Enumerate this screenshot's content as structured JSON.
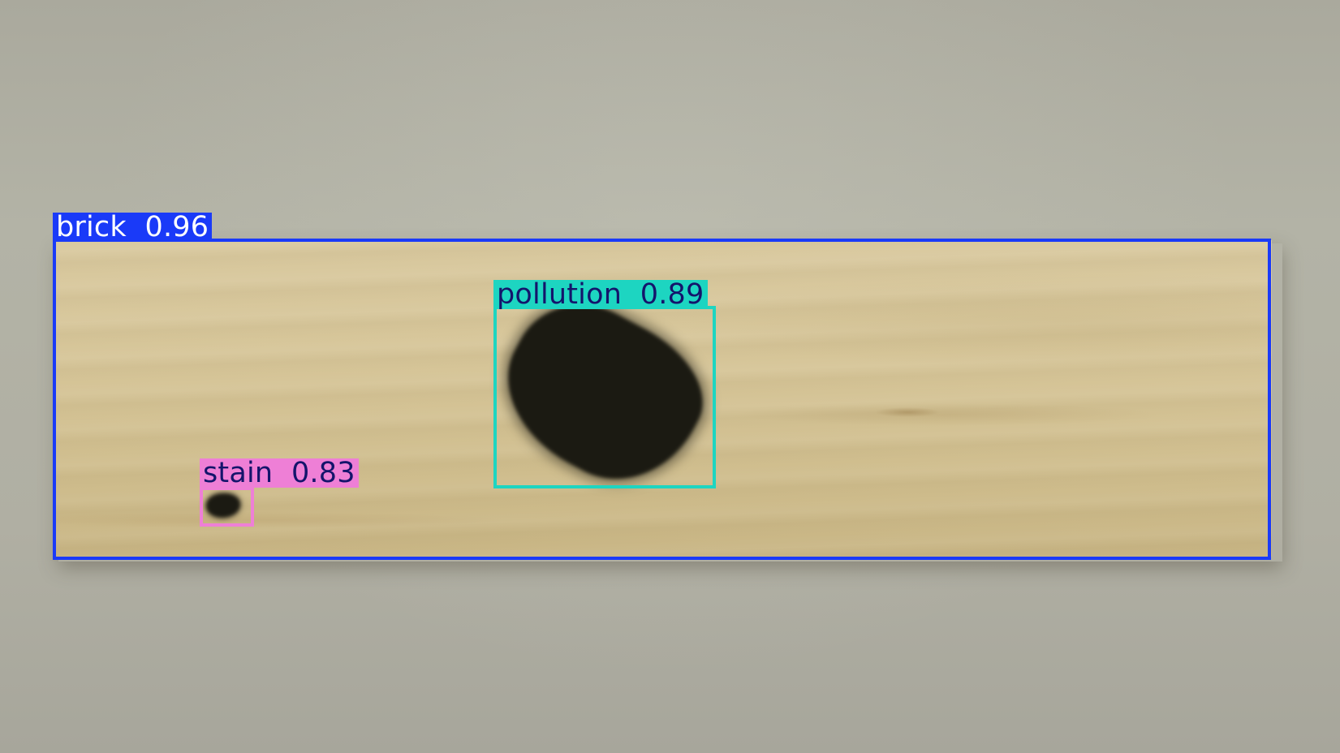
{
  "image": {
    "subject": "wood-plank-defect-detection"
  },
  "detections": [
    {
      "class": "brick",
      "confidence": "0.96",
      "label": "brick  0.96",
      "color": "#1a3af8",
      "text_color": "#ffffff"
    },
    {
      "class": "pollution",
      "confidence": "0.89",
      "label": "pollution  0.89",
      "color": "#1dd5c1",
      "text_color": "#14146b"
    },
    {
      "class": "stain",
      "confidence": "0.83",
      "label": "stain  0.83",
      "color": "#ee7fd6",
      "text_color": "#14146b"
    }
  ]
}
